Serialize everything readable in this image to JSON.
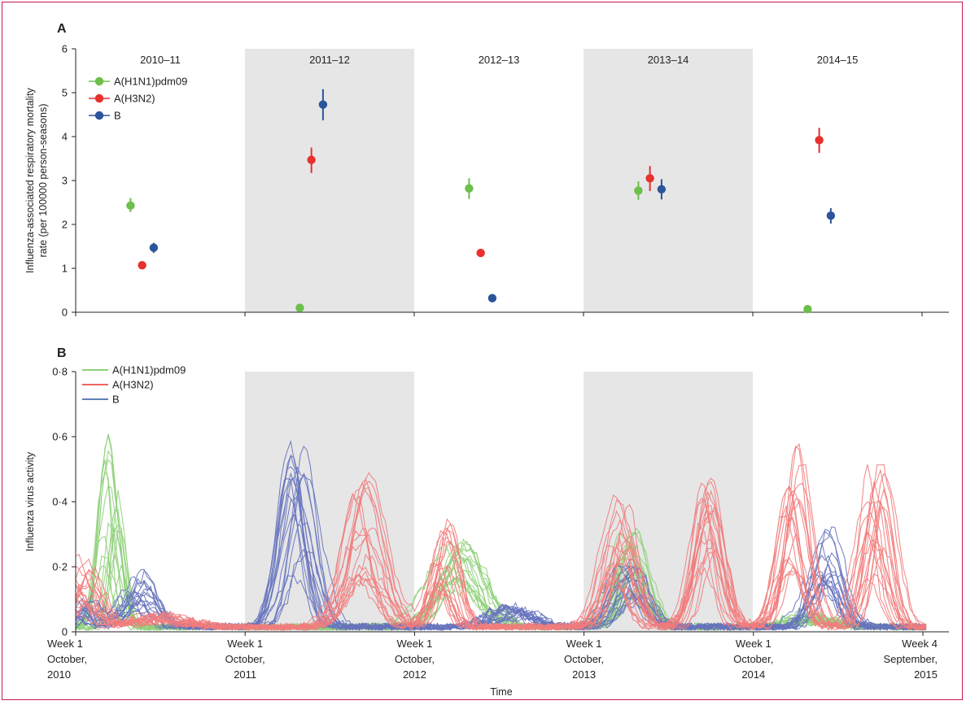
{
  "colors": {
    "h1n1": "#6cbf4b",
    "h3n2": "#e8302d",
    "b": "#2b559b",
    "h1n1_line": "#8fd07a",
    "h3n2_line": "#f27c7c",
    "b_line": "#6673bd",
    "shade": "#e6e6e7"
  },
  "chart_data": [
    {
      "panel": "A",
      "type": "scatter",
      "ylabel": "Influenza-associated respiratory mortality rate (per 100000 person-seasons)",
      "ylim": [
        0,
        6
      ],
      "yticks": [
        "0",
        "1",
        "2",
        "3",
        "4",
        "5",
        "6"
      ],
      "seasons": [
        "2010–11",
        "2011–12",
        "2012–13",
        "2013–14",
        "2014–15"
      ],
      "shaded_seasons": [
        1,
        3
      ],
      "legend": [
        "A(H1N1)pdm09",
        "A(H3N2)",
        "B"
      ],
      "legend_position": "top-left",
      "series": [
        {
          "name": "A(H1N1)pdm09",
          "key": "h1n1",
          "points": [
            {
              "season": 0,
              "value": 2.43,
              "low": 2.28,
              "high": 2.6
            },
            {
              "season": 1,
              "value": 0.1,
              "low": 0.08,
              "high": 0.12
            },
            {
              "season": 2,
              "value": 2.82,
              "low": 2.58,
              "high": 3.05
            },
            {
              "season": 3,
              "value": 2.77,
              "low": 2.56,
              "high": 2.98
            },
            {
              "season": 4,
              "value": 0.07,
              "low": 0.05,
              "high": 0.09
            }
          ]
        },
        {
          "name": "A(H3N2)",
          "key": "h3n2",
          "points": [
            {
              "season": 0,
              "value": 1.07,
              "low": 0.99,
              "high": 1.15
            },
            {
              "season": 1,
              "value": 3.47,
              "low": 3.17,
              "high": 3.75
            },
            {
              "season": 2,
              "value": 1.35,
              "low": 1.27,
              "high": 1.43
            },
            {
              "season": 3,
              "value": 3.05,
              "low": 2.76,
              "high": 3.33
            },
            {
              "season": 4,
              "value": 3.92,
              "low": 3.63,
              "high": 4.2
            }
          ]
        },
        {
          "name": "B",
          "key": "b",
          "points": [
            {
              "season": 0,
              "value": 1.47,
              "low": 1.35,
              "high": 1.58
            },
            {
              "season": 1,
              "value": 4.73,
              "low": 4.37,
              "high": 5.08
            },
            {
              "season": 2,
              "value": 0.32,
              "low": 0.29,
              "high": 0.35
            },
            {
              "season": 3,
              "value": 2.8,
              "low": 2.57,
              "high": 3.03
            },
            {
              "season": 4,
              "value": 2.2,
              "low": 2.02,
              "high": 2.37
            }
          ]
        }
      ]
    },
    {
      "panel": "B",
      "type": "line",
      "xlabel": "Time",
      "ylabel": "Influenza virus activity",
      "ylim": [
        0,
        0.8
      ],
      "yticks": [
        "0",
        "0·2",
        "0·4",
        "0·6",
        "0·8"
      ],
      "xticks": [
        {
          "label": [
            "Week 1",
            "October,",
            "2010"
          ],
          "week": 0
        },
        {
          "label": [
            "Week 1",
            "October,",
            "2011"
          ],
          "week": 52
        },
        {
          "label": [
            "Week 1",
            "October,",
            "2012"
          ],
          "week": 104
        },
        {
          "label": [
            "Week 1",
            "October,",
            "2013"
          ],
          "week": 156
        },
        {
          "label": [
            "Week 1",
            "October,",
            "2014"
          ],
          "week": 208
        },
        {
          "label": [
            "Week 4",
            "September,",
            "2015"
          ],
          "week": 260
        }
      ],
      "xlim": [
        0,
        261
      ],
      "shaded_seasons": [
        1,
        3
      ],
      "legend": [
        "A(H1N1)pdm09",
        "A(H3N2)",
        "B"
      ],
      "legend_position": "top-left",
      "lines_per_subtype": 18,
      "peaks": {
        "h1n1": [
          {
            "week": 11,
            "height": 0.46,
            "width": 2.4
          },
          {
            "week": 117,
            "height": 0.2,
            "width": 6.0
          },
          {
            "week": 170,
            "height": 0.24,
            "width": 4.0
          },
          {
            "week": 226,
            "height": 0.03,
            "width": 6.0
          }
        ],
        "h3n2": [
          {
            "week": 2,
            "height": 0.16,
            "width": 3.5
          },
          {
            "week": 25,
            "height": 0.03,
            "width": 8.0
          },
          {
            "week": 88,
            "height": 0.38,
            "width": 5.0
          },
          {
            "week": 113,
            "height": 0.26,
            "width": 3.0
          },
          {
            "week": 167,
            "height": 0.3,
            "width": 4.0
          },
          {
            "week": 194,
            "height": 0.38,
            "width": 3.5
          },
          {
            "week": 220,
            "height": 0.46,
            "width": 3.5
          },
          {
            "week": 246,
            "height": 0.4,
            "width": 3.5
          }
        ],
        "b": [
          {
            "week": 3,
            "height": 0.06,
            "width": 3.0
          },
          {
            "week": 19,
            "height": 0.14,
            "width": 4.5
          },
          {
            "week": 68,
            "height": 0.44,
            "width": 4.0
          },
          {
            "week": 134,
            "height": 0.05,
            "width": 6.0
          },
          {
            "week": 170,
            "height": 0.18,
            "width": 4.5
          },
          {
            "week": 230,
            "height": 0.26,
            "width": 4.0
          }
        ]
      }
    }
  ]
}
